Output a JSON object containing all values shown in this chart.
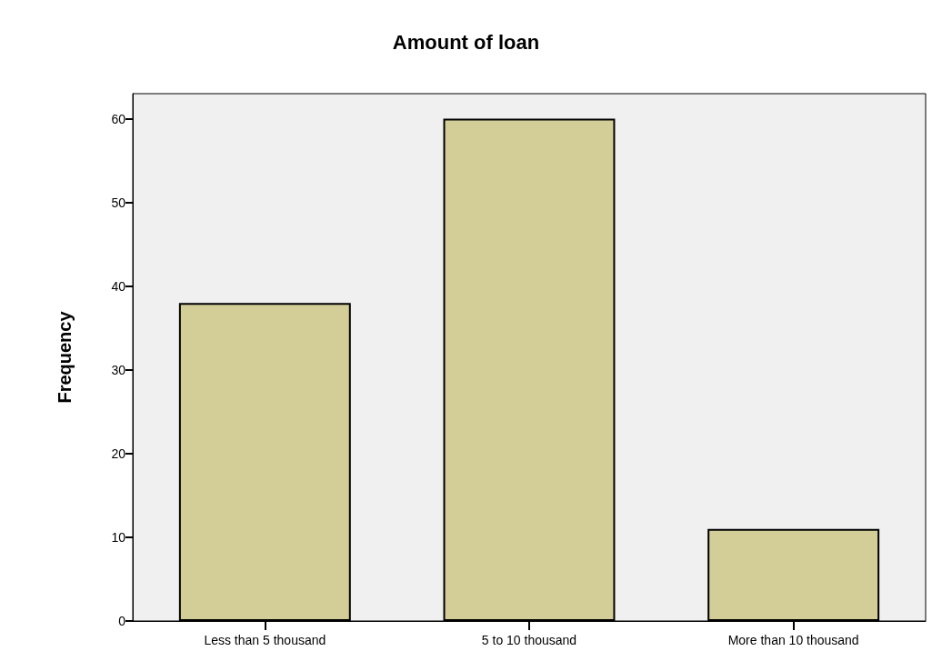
{
  "chart_data": {
    "type": "bar",
    "title": "Amount of loan",
    "ylabel": "Frequency",
    "categories": [
      "Less than 5 thousand",
      "5 to 10 thousand",
      "More than 10 thousand"
    ],
    "values": [
      38,
      60,
      11
    ],
    "color": "#d3ce98",
    "ylim": [
      0,
      63
    ],
    "yticks": [
      0,
      10,
      20,
      30,
      40,
      50,
      60
    ],
    "grid": false
  }
}
